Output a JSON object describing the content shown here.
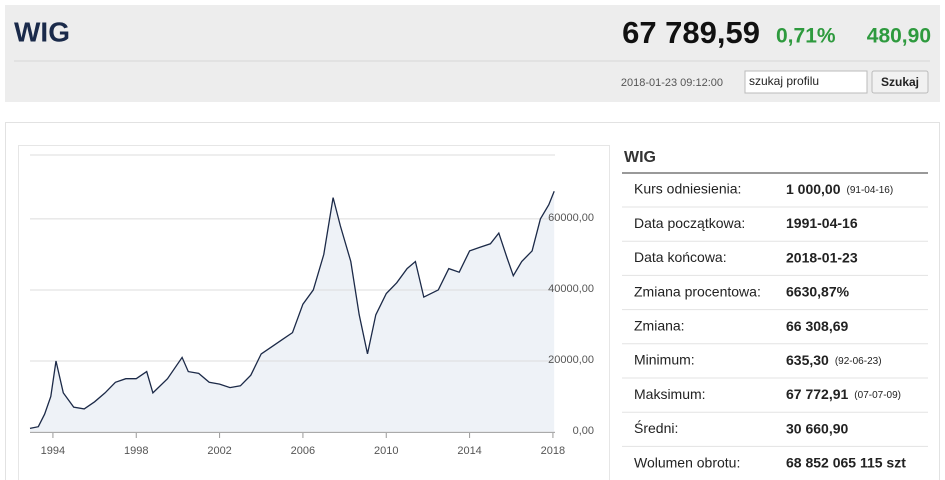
{
  "header": {
    "title": "WIG",
    "value": "67 789,59",
    "change_percent": "0,71%",
    "change": "480,90",
    "timestamp": "2018-01-23 09:12:00",
    "search_placeholder": "szukaj profilu",
    "search_button": "Szukaj"
  },
  "chart_data": {
    "type": "area",
    "color": "#1c2a48",
    "fill": "#eef2f7",
    "x": [
      1992.9,
      1993.3,
      1993.6,
      1993.9,
      1994.15,
      1994.5,
      1995.0,
      1995.5,
      1996.0,
      1996.5,
      1997.0,
      1997.5,
      1998.0,
      1998.5,
      1998.8,
      1999.5,
      2000.2,
      2000.5,
      2001.0,
      2001.5,
      2002.0,
      2002.5,
      2003.0,
      2003.5,
      2004.0,
      2004.5,
      2005.0,
      2005.5,
      2006.0,
      2006.5,
      2007.0,
      2007.45,
      2007.8,
      2008.3,
      2008.7,
      2009.1,
      2009.5,
      2010.0,
      2010.5,
      2011.0,
      2011.4,
      2011.8,
      2012.5,
      2013.0,
      2013.5,
      2014.0,
      2014.5,
      2015.0,
      2015.4,
      2015.8,
      2016.1,
      2016.5,
      2017.0,
      2017.4,
      2017.8,
      2018.06
    ],
    "values": [
      1000,
      1500,
      5000,
      10000,
      20000,
      11000,
      7000,
      6500,
      8500,
      11000,
      14000,
      15000,
      15000,
      17000,
      11000,
      15000,
      21000,
      17000,
      16500,
      14000,
      13500,
      12500,
      13000,
      16000,
      22000,
      24000,
      26000,
      28000,
      36000,
      40000,
      50000,
      66000,
      58000,
      48000,
      33000,
      22000,
      33000,
      39000,
      42000,
      46000,
      48000,
      38000,
      40000,
      46000,
      45000,
      51000,
      52000,
      53000,
      56000,
      49000,
      44000,
      48000,
      51000,
      60000,
      64000,
      67790
    ],
    "xlim": [
      1992.9,
      2018.1
    ],
    "xticks": [
      1994,
      1998,
      2002,
      2006,
      2010,
      2014,
      2018
    ],
    "ylim": [
      0,
      78000
    ],
    "yticks": [
      {
        "value": 0,
        "label": "0,00"
      },
      {
        "value": 20000,
        "label": "20000,00"
      },
      {
        "value": 40000,
        "label": "40000,00"
      },
      {
        "value": 60000,
        "label": "60000,00"
      }
    ],
    "grid": true
  },
  "table": {
    "title": "WIG",
    "rows": [
      {
        "label": "Kurs odniesienia:",
        "value": "1 000,00",
        "note": "(91-04-16)"
      },
      {
        "label": "Data początkowa:",
        "value": "1991-04-16"
      },
      {
        "label": "Data końcowa:",
        "value": "2018-01-23"
      },
      {
        "label": "Zmiana procentowa:",
        "value": "6630,87%"
      },
      {
        "label": "Zmiana:",
        "value": "66 308,69"
      },
      {
        "label": "Minimum:",
        "value": "635,30",
        "note": "(92-06-23)"
      },
      {
        "label": "Maksimum:",
        "value": "67 772,91",
        "note": "(07-07-09)"
      },
      {
        "label": "Średni:",
        "value": "30 660,90"
      },
      {
        "label": "Wolumen obrotu:",
        "value": "68 852 065 115 szt"
      }
    ]
  }
}
